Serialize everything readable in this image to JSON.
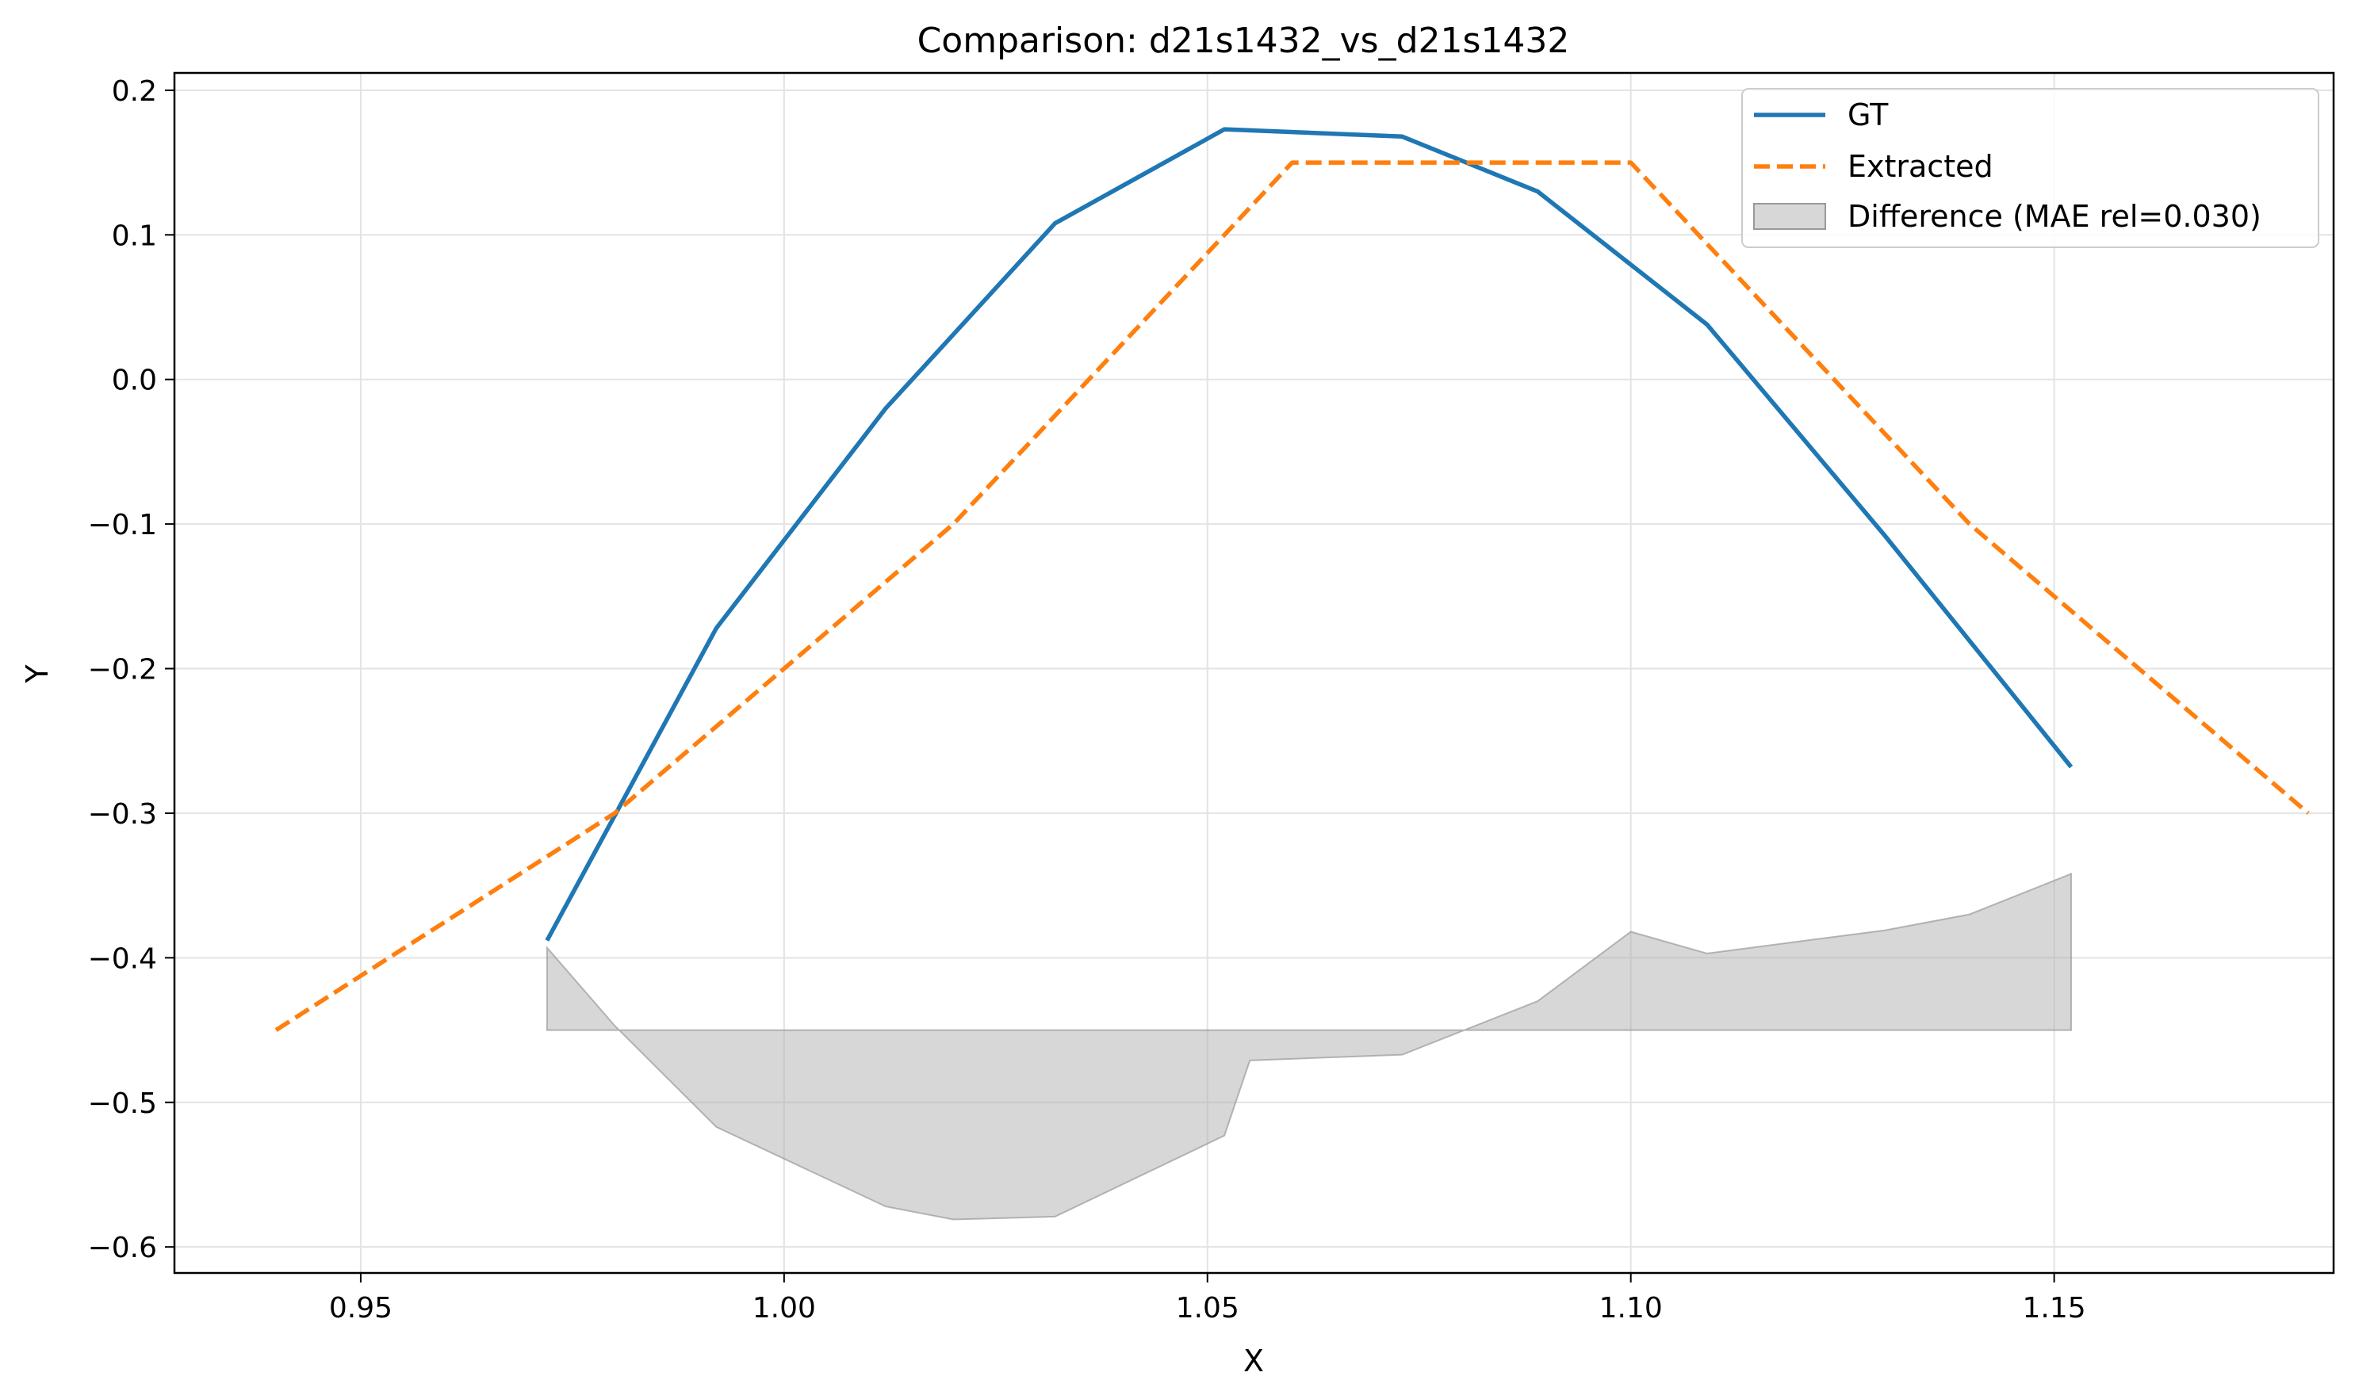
{
  "chart_data": {
    "type": "line",
    "title": "Comparison: d21s1432_vs_d21s1432",
    "xlabel": "X",
    "ylabel": "Y",
    "xlim": [
      0.928,
      1.183
    ],
    "ylim": [
      -0.618,
      0.212
    ],
    "xticks": [
      0.95,
      1.0,
      1.05,
      1.1,
      1.15
    ],
    "xtick_labels": [
      "0.95",
      "1.00",
      "1.05",
      "1.10",
      "1.15"
    ],
    "yticks": [
      0.2,
      0.1,
      0.0,
      -0.1,
      -0.2,
      -0.3,
      -0.4,
      -0.5,
      -0.6
    ],
    "ytick_labels": [
      "0.2",
      "0.1",
      "0.0",
      "−0.1",
      "−0.2",
      "−0.3",
      "−0.4",
      "−0.5",
      "−0.6"
    ],
    "grid": true,
    "legend_position": "top-right",
    "series": [
      {
        "name": "GT",
        "color": "#1f77b4",
        "style": "solid",
        "x": [
          0.972,
          0.992,
          1.012,
          1.032,
          1.052,
          1.073,
          1.089,
          1.109,
          1.13,
          1.152
        ],
        "y": [
          -0.388,
          -0.172,
          -0.02,
          0.108,
          0.173,
          0.168,
          0.13,
          0.038,
          -0.108,
          -0.268
        ]
      },
      {
        "name": "Extracted",
        "color": "#ff7f0e",
        "style": "dashed",
        "x": [
          0.94,
          0.98,
          1.02,
          1.06,
          1.1,
          1.14,
          1.18
        ],
        "y": [
          -0.45,
          -0.3,
          -0.1,
          0.15,
          0.15,
          -0.1,
          -0.3
        ]
      }
    ],
    "difference": {
      "name": "Difference (MAE rel=0.030)",
      "color": "#b0b0b0",
      "baseline": -0.45,
      "x": [
        0.972,
        0.98,
        0.992,
        1.012,
        1.02,
        1.032,
        1.052,
        1.055,
        1.073,
        1.089,
        1.1,
        1.109,
        1.13,
        1.14,
        1.152
      ],
      "y": [
        -0.393,
        -0.447,
        -0.517,
        -0.572,
        -0.581,
        -0.579,
        -0.523,
        -0.471,
        -0.467,
        -0.43,
        -0.382,
        -0.397,
        -0.381,
        -0.37,
        -0.342
      ]
    }
  }
}
